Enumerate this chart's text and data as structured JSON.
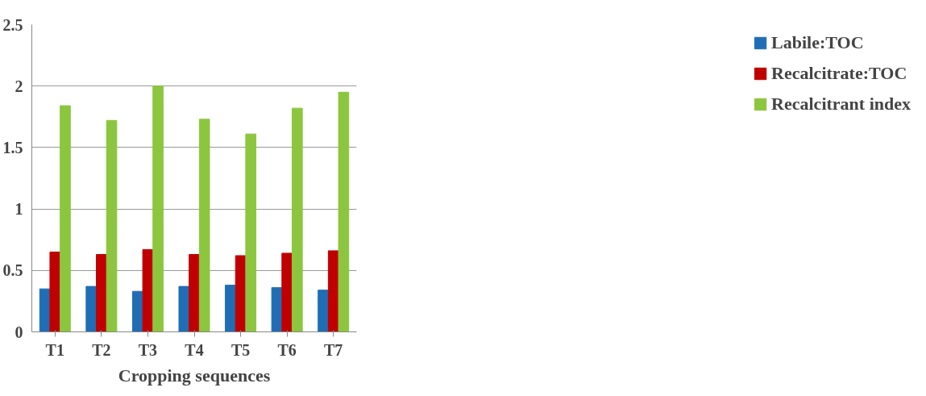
{
  "chart_data": {
    "type": "bar",
    "xlabel": "Cropping sequences",
    "categories": [
      "T1",
      "T2",
      "T3",
      "T4",
      "T5",
      "T6",
      "T7"
    ],
    "series": [
      {
        "name": "Labile:TOC",
        "color": "#1f6eb5",
        "values": [
          0.35,
          0.37,
          0.33,
          0.37,
          0.38,
          0.36,
          0.34
        ]
      },
      {
        "name": "Recalcitrate:TOC",
        "color": "#c00000",
        "values": [
          0.65,
          0.63,
          0.67,
          0.63,
          0.62,
          0.64,
          0.66
        ]
      },
      {
        "name": "Recalcitrant index",
        "color": "#8cc63f",
        "values": [
          1.84,
          1.72,
          2.0,
          1.73,
          1.61,
          1.82,
          1.95
        ]
      }
    ],
    "ylim": [
      0,
      2.5
    ],
    "yticks": [
      0,
      0.5,
      1,
      1.5,
      2,
      2.5
    ],
    "grid": "y",
    "legend": "right"
  }
}
